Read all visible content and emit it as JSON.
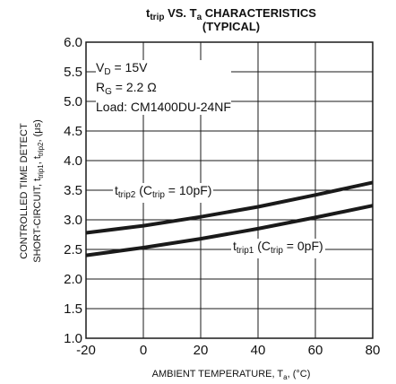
{
  "title": {
    "line1_prefix": "t",
    "line1_prefix_sub": "trip",
    "line1_mid": " VS. T",
    "line1_mid_sub": "a",
    "line1_suffix": " CHARACTERISTICS",
    "line2": "(TYPICAL)"
  },
  "conditions": {
    "vd_prefix": "V",
    "vd_sub": "D",
    "vd_value": " = 15V",
    "rg_prefix": "R",
    "rg_sub": "G",
    "rg_value": " = 2.2 Ω",
    "load": "Load: CM1400DU-24NF"
  },
  "labels": {
    "trip2_main": "t",
    "trip2_sub": "trip2",
    "trip2_open": " (C",
    "trip2_csub": "trip",
    "trip2_close": " = 10pF)",
    "trip1_main": "t",
    "trip1_sub": "trip1",
    "trip1_open": " (C",
    "trip1_csub": "trip",
    "trip1_close": " = 0pF)"
  },
  "chart_data": {
    "type": "line",
    "xlabel": "AMBIENT TEMPERATURE, T",
    "xlabel_sub": "a",
    "xlabel_unit": ", (°C)",
    "ylabel_line1": "CONTROLLED TIME DETECT",
    "ylabel_line2_a": "SHORT-CIRCUIT, t",
    "ylabel_line2_s1": "trip1",
    "ylabel_line2_b": ", t",
    "ylabel_line2_s2": "trip2",
    "ylabel_line2_c": ", (μs)",
    "xlim": [
      -20,
      80
    ],
    "ylim": [
      1.0,
      6.0
    ],
    "xticks": [
      "-20",
      "0",
      "20",
      "40",
      "60",
      "80"
    ],
    "yticks": [
      "1.0",
      "1.5",
      "2.0",
      "2.5",
      "3.0",
      "3.5",
      "4.0",
      "4.5",
      "5.0",
      "5.5",
      "6.0"
    ],
    "grid": true,
    "series": [
      {
        "name": "trip2",
        "x": [
          -20,
          0,
          20,
          40,
          60,
          80
        ],
        "y": [
          2.78,
          2.9,
          3.05,
          3.22,
          3.42,
          3.63
        ]
      },
      {
        "name": "trip1",
        "x": [
          -20,
          0,
          20,
          40,
          60,
          80
        ],
        "y": [
          2.4,
          2.53,
          2.68,
          2.85,
          3.04,
          3.24
        ]
      }
    ],
    "line_color": "#1a1a1a",
    "grid_color": "#1a1a1a"
  }
}
